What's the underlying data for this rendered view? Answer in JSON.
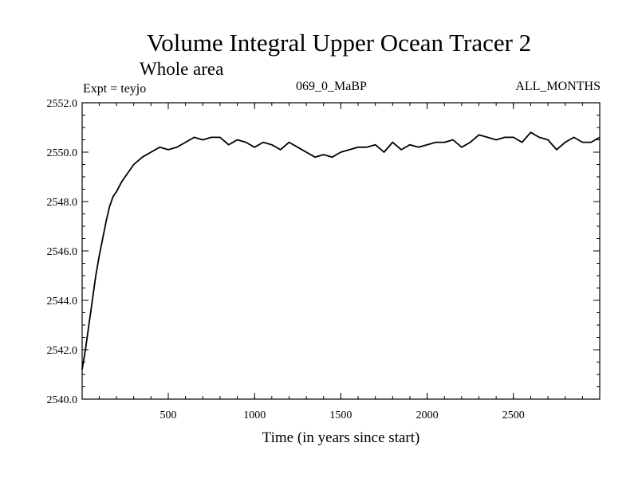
{
  "chart_data": {
    "type": "line",
    "title": "Volume Integral Upper Ocean Tracer 2",
    "subtitle": "Whole area",
    "annotations": {
      "left": "Expt = teyjo",
      "center": "069_0_MaBP",
      "right": "ALL_MONTHS"
    },
    "xlabel": "Time (in years since start)",
    "ylabel": "",
    "xlim": [
      1,
      3000
    ],
    "ylim": [
      2540.0,
      2552.0
    ],
    "xticks": [
      500,
      1000,
      1500,
      2000,
      2500
    ],
    "yticks": [
      "2540.0",
      "2542.0",
      "2544.0",
      "2546.0",
      "2548.0",
      "2550.0",
      "2552.0"
    ],
    "grid": false,
    "series": [
      {
        "name": "Tracer 2",
        "color": "#000000",
        "x": [
          1,
          20,
          40,
          60,
          80,
          100,
          120,
          140,
          160,
          180,
          200,
          230,
          260,
          300,
          350,
          400,
          450,
          500,
          550,
          600,
          650,
          700,
          750,
          800,
          850,
          900,
          950,
          1000,
          1050,
          1100,
          1150,
          1200,
          1250,
          1300,
          1350,
          1400,
          1450,
          1500,
          1550,
          1600,
          1650,
          1700,
          1750,
          1800,
          1850,
          1900,
          1950,
          2000,
          2050,
          2100,
          2150,
          2200,
          2250,
          2300,
          2350,
          2400,
          2450,
          2500,
          2550,
          2600,
          2650,
          2700,
          2750,
          2800,
          2850,
          2900,
          2950,
          3000
        ],
        "y": [
          2541.2,
          2542.0,
          2543.0,
          2544.0,
          2545.0,
          2545.8,
          2546.5,
          2547.2,
          2547.8,
          2548.2,
          2548.4,
          2548.8,
          2549.1,
          2549.5,
          2549.8,
          2550.0,
          2550.2,
          2550.1,
          2550.2,
          2550.4,
          2550.6,
          2550.5,
          2550.6,
          2550.6,
          2550.3,
          2550.5,
          2550.4,
          2550.2,
          2550.4,
          2550.3,
          2550.1,
          2550.4,
          2550.2,
          2550.0,
          2549.8,
          2549.9,
          2549.8,
          2550.0,
          2550.1,
          2550.2,
          2550.2,
          2550.3,
          2550.0,
          2550.4,
          2550.1,
          2550.3,
          2550.2,
          2550.3,
          2550.4,
          2550.4,
          2550.5,
          2550.2,
          2550.4,
          2550.7,
          2550.6,
          2550.5,
          2550.6,
          2550.6,
          2550.4,
          2550.8,
          2550.6,
          2550.5,
          2550.1,
          2550.4,
          2550.6,
          2550.4,
          2550.4,
          2550.6
        ]
      }
    ]
  }
}
